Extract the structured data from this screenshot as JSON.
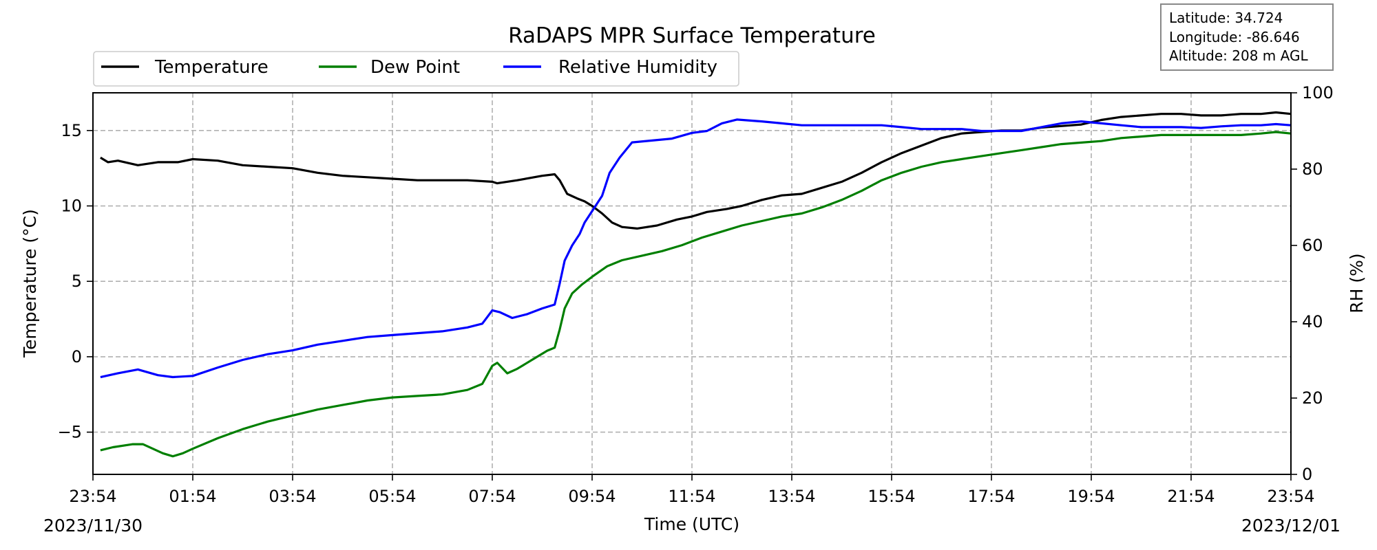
{
  "chart_data": {
    "type": "line",
    "title": "RaDAPS MPR Surface Temperature",
    "xlabel": "Time (UTC)",
    "ylabel": "Temperature ($^\\circ$C)",
    "ylabel_display": "Temperature (°C)",
    "y2label": "RH (%)",
    "ylim": [
      -7.8,
      17.5
    ],
    "y2lim": [
      0,
      100
    ],
    "xlim": [
      0,
      24
    ],
    "y_ticks": [
      -5,
      0,
      5,
      10,
      15
    ],
    "y_tick_labels": [
      "−5",
      "0",
      "5",
      "10",
      "15"
    ],
    "y2_ticks": [
      0,
      20,
      40,
      60,
      80,
      100
    ],
    "y2_tick_labels": [
      "0",
      "20",
      "40",
      "60",
      "80",
      "100"
    ],
    "x_ticks": [
      0,
      2,
      4,
      6,
      8,
      10,
      12,
      14,
      16,
      18,
      20,
      22,
      24
    ],
    "x_tick_labels": [
      "23:54",
      "01:54",
      "03:54",
      "05:54",
      "07:54",
      "09:54",
      "11:54",
      "13:54",
      "15:54",
      "17:54",
      "19:54",
      "21:54",
      "23:54"
    ],
    "date_start": "2023/11/30",
    "date_end": "2023/12/01",
    "grid": true,
    "legend_position": "top-left, above plot",
    "info_box": {
      "latitude": "Latitude: 34.724",
      "longitude": "Longitude: -86.646",
      "altitude": "Altitude: 208 m AGL"
    },
    "series": [
      {
        "name": "Temperature",
        "axis": "left",
        "color": "#000000",
        "points": [
          [
            0.15,
            13.2
          ],
          [
            0.3,
            12.9
          ],
          [
            0.5,
            13.0
          ],
          [
            0.9,
            12.7
          ],
          [
            1.3,
            12.9
          ],
          [
            1.7,
            12.9
          ],
          [
            2.0,
            13.1
          ],
          [
            2.5,
            13.0
          ],
          [
            3.0,
            12.7
          ],
          [
            3.5,
            12.6
          ],
          [
            4.0,
            12.5
          ],
          [
            4.5,
            12.2
          ],
          [
            5.0,
            12.0
          ],
          [
            5.5,
            11.9
          ],
          [
            6.0,
            11.8
          ],
          [
            6.5,
            11.7
          ],
          [
            7.0,
            11.7
          ],
          [
            7.5,
            11.7
          ],
          [
            8.0,
            11.6
          ],
          [
            8.1,
            11.5
          ],
          [
            8.5,
            11.7
          ],
          [
            9.0,
            12.0
          ],
          [
            9.25,
            12.1
          ],
          [
            9.35,
            11.7
          ],
          [
            9.5,
            10.8
          ],
          [
            9.7,
            10.5
          ],
          [
            9.85,
            10.3
          ],
          [
            10.0,
            10.0
          ],
          [
            10.2,
            9.5
          ],
          [
            10.4,
            8.9
          ],
          [
            10.6,
            8.6
          ],
          [
            10.9,
            8.5
          ],
          [
            11.3,
            8.7
          ],
          [
            11.7,
            9.1
          ],
          [
            12.0,
            9.3
          ],
          [
            12.3,
            9.6
          ],
          [
            12.7,
            9.8
          ],
          [
            13.0,
            10.0
          ],
          [
            13.4,
            10.4
          ],
          [
            13.8,
            10.7
          ],
          [
            14.2,
            10.8
          ],
          [
            14.6,
            11.2
          ],
          [
            15.0,
            11.6
          ],
          [
            15.4,
            12.2
          ],
          [
            15.8,
            12.9
          ],
          [
            16.2,
            13.5
          ],
          [
            16.6,
            14.0
          ],
          [
            17.0,
            14.5
          ],
          [
            17.4,
            14.8
          ],
          [
            17.8,
            14.9
          ],
          [
            18.2,
            15.0
          ],
          [
            18.6,
            15.0
          ],
          [
            19.0,
            15.2
          ],
          [
            19.4,
            15.3
          ],
          [
            19.8,
            15.4
          ],
          [
            20.2,
            15.7
          ],
          [
            20.6,
            15.9
          ],
          [
            21.0,
            16.0
          ],
          [
            21.4,
            16.1
          ],
          [
            21.8,
            16.1
          ],
          [
            22.2,
            16.0
          ],
          [
            22.6,
            16.0
          ],
          [
            23.0,
            16.1
          ],
          [
            23.4,
            16.1
          ],
          [
            23.7,
            16.2
          ],
          [
            24.0,
            16.1
          ]
        ]
      },
      {
        "name": "Dew Point",
        "axis": "left",
        "color": "#007f00",
        "points": [
          [
            0.15,
            -6.2
          ],
          [
            0.4,
            -6.0
          ],
          [
            0.8,
            -5.8
          ],
          [
            1.0,
            -5.8
          ],
          [
            1.2,
            -6.1
          ],
          [
            1.4,
            -6.4
          ],
          [
            1.6,
            -6.6
          ],
          [
            1.8,
            -6.4
          ],
          [
            2.0,
            -6.1
          ],
          [
            2.5,
            -5.4
          ],
          [
            3.0,
            -4.8
          ],
          [
            3.5,
            -4.3
          ],
          [
            4.0,
            -3.9
          ],
          [
            4.5,
            -3.5
          ],
          [
            5.0,
            -3.2
          ],
          [
            5.5,
            -2.9
          ],
          [
            6.0,
            -2.7
          ],
          [
            6.5,
            -2.6
          ],
          [
            7.0,
            -2.5
          ],
          [
            7.5,
            -2.2
          ],
          [
            7.8,
            -1.8
          ],
          [
            8.0,
            -0.6
          ],
          [
            8.1,
            -0.4
          ],
          [
            8.3,
            -1.1
          ],
          [
            8.5,
            -0.8
          ],
          [
            8.8,
            -0.2
          ],
          [
            9.1,
            0.4
          ],
          [
            9.25,
            0.6
          ],
          [
            9.35,
            1.8
          ],
          [
            9.45,
            3.2
          ],
          [
            9.6,
            4.2
          ],
          [
            9.8,
            4.8
          ],
          [
            10.0,
            5.3
          ],
          [
            10.3,
            6.0
          ],
          [
            10.6,
            6.4
          ],
          [
            11.0,
            6.7
          ],
          [
            11.4,
            7.0
          ],
          [
            11.8,
            7.4
          ],
          [
            12.2,
            7.9
          ],
          [
            12.6,
            8.3
          ],
          [
            13.0,
            8.7
          ],
          [
            13.4,
            9.0
          ],
          [
            13.8,
            9.3
          ],
          [
            14.2,
            9.5
          ],
          [
            14.6,
            9.9
          ],
          [
            15.0,
            10.4
          ],
          [
            15.4,
            11.0
          ],
          [
            15.8,
            11.7
          ],
          [
            16.2,
            12.2
          ],
          [
            16.6,
            12.6
          ],
          [
            17.0,
            12.9
          ],
          [
            17.4,
            13.1
          ],
          [
            17.8,
            13.3
          ],
          [
            18.2,
            13.5
          ],
          [
            18.6,
            13.7
          ],
          [
            19.0,
            13.9
          ],
          [
            19.4,
            14.1
          ],
          [
            19.8,
            14.2
          ],
          [
            20.2,
            14.3
          ],
          [
            20.6,
            14.5
          ],
          [
            21.0,
            14.6
          ],
          [
            21.4,
            14.7
          ],
          [
            21.8,
            14.7
          ],
          [
            22.2,
            14.7
          ],
          [
            22.6,
            14.7
          ],
          [
            23.0,
            14.7
          ],
          [
            23.4,
            14.8
          ],
          [
            23.7,
            14.9
          ],
          [
            24.0,
            14.8
          ]
        ]
      },
      {
        "name": "Relative Humidity",
        "axis": "right",
        "color": "#0000ff",
        "points": [
          [
            0.15,
            25.5
          ],
          [
            0.5,
            26.5
          ],
          [
            0.9,
            27.5
          ],
          [
            1.3,
            26.0
          ],
          [
            1.6,
            25.5
          ],
          [
            2.0,
            25.8
          ],
          [
            2.5,
            28.0
          ],
          [
            3.0,
            30.0
          ],
          [
            3.5,
            31.5
          ],
          [
            4.0,
            32.5
          ],
          [
            4.5,
            34.0
          ],
          [
            5.0,
            35.0
          ],
          [
            5.5,
            36.0
          ],
          [
            6.0,
            36.5
          ],
          [
            6.5,
            37.0
          ],
          [
            7.0,
            37.5
          ],
          [
            7.5,
            38.5
          ],
          [
            7.8,
            39.5
          ],
          [
            8.0,
            43.0
          ],
          [
            8.15,
            42.5
          ],
          [
            8.4,
            41.0
          ],
          [
            8.7,
            42.0
          ],
          [
            9.0,
            43.5
          ],
          [
            9.25,
            44.5
          ],
          [
            9.35,
            50.0
          ],
          [
            9.45,
            56.0
          ],
          [
            9.6,
            60.0
          ],
          [
            9.75,
            63.0
          ],
          [
            9.85,
            66.0
          ],
          [
            10.0,
            69.0
          ],
          [
            10.2,
            73.0
          ],
          [
            10.35,
            79.0
          ],
          [
            10.55,
            83.0
          ],
          [
            10.8,
            87.0
          ],
          [
            11.2,
            87.5
          ],
          [
            11.6,
            88.0
          ],
          [
            12.0,
            89.5
          ],
          [
            12.3,
            90.0
          ],
          [
            12.6,
            92.0
          ],
          [
            12.9,
            93.0
          ],
          [
            13.4,
            92.5
          ],
          [
            13.8,
            92.0
          ],
          [
            14.2,
            91.5
          ],
          [
            14.6,
            91.5
          ],
          [
            15.0,
            91.5
          ],
          [
            15.4,
            91.5
          ],
          [
            15.8,
            91.5
          ],
          [
            16.2,
            91.0
          ],
          [
            16.6,
            90.5
          ],
          [
            17.0,
            90.5
          ],
          [
            17.4,
            90.5
          ],
          [
            17.8,
            90.0
          ],
          [
            18.2,
            90.0
          ],
          [
            18.6,
            90.0
          ],
          [
            19.0,
            91.0
          ],
          [
            19.4,
            92.0
          ],
          [
            19.8,
            92.5
          ],
          [
            20.2,
            92.0
          ],
          [
            20.6,
            91.5
          ],
          [
            21.0,
            91.0
          ],
          [
            21.4,
            91.0
          ],
          [
            21.8,
            91.0
          ],
          [
            22.2,
            90.8
          ],
          [
            22.6,
            91.2
          ],
          [
            23.0,
            91.5
          ],
          [
            23.4,
            91.5
          ],
          [
            23.7,
            91.8
          ],
          [
            24.0,
            91.5
          ]
        ]
      }
    ]
  }
}
